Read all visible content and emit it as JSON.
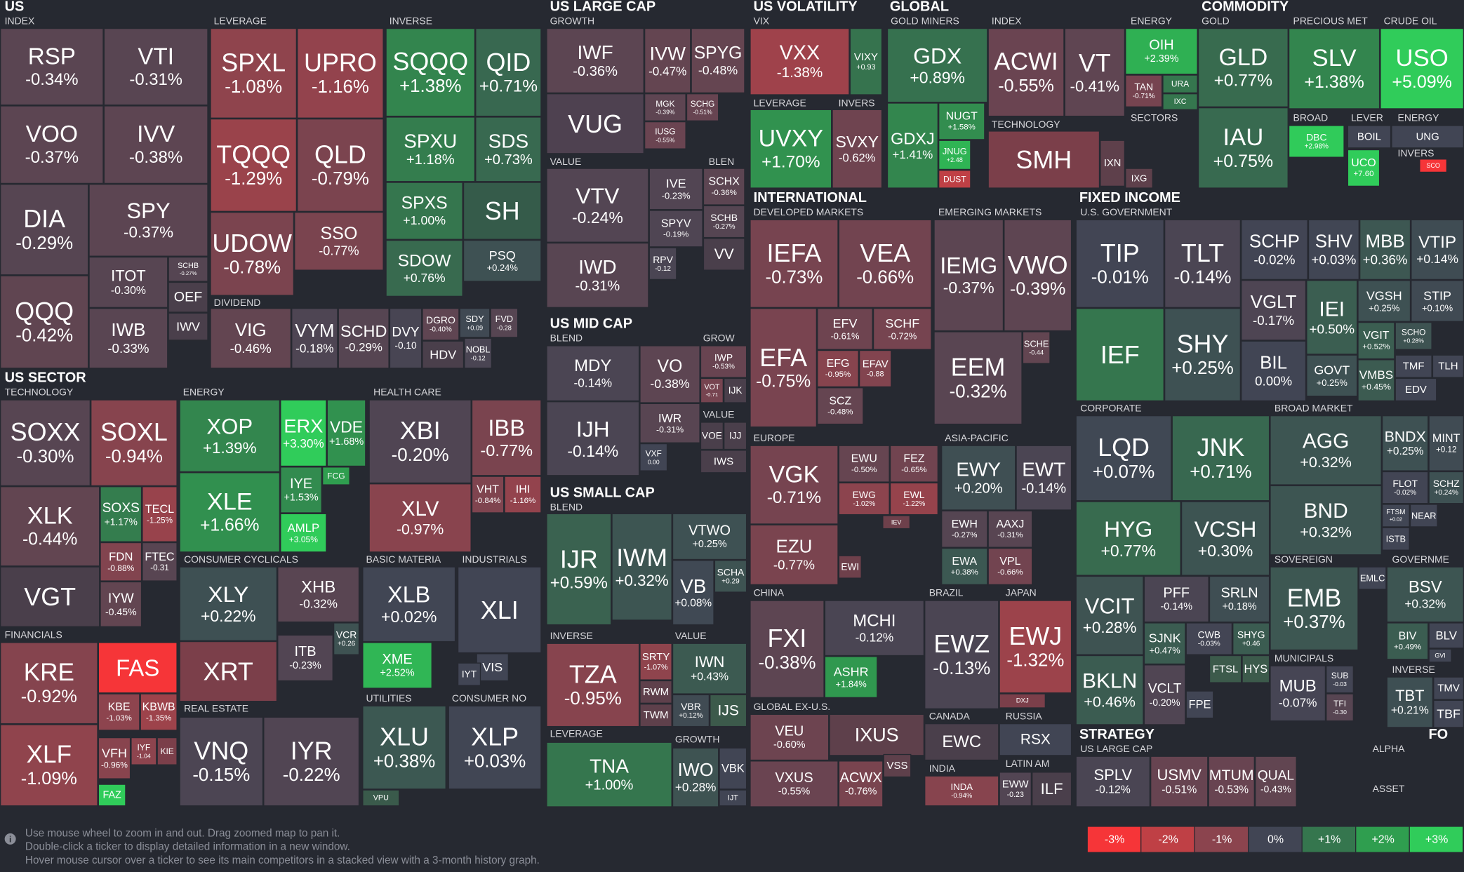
{
  "headers": [
    "US",
    "INDEX",
    "LEVERAGE",
    "INVERSE",
    "DIVIDEND",
    "US SECTOR",
    "TECHNOLOGY",
    "ENERGY",
    "HEALTH CARE",
    "CONSUMER CYCLICALS",
    "BASIC MATERIA",
    "INDUSTRIALS",
    "FINANCIALS",
    "REAL ESTATE",
    "UTILITIES",
    "CONSUMER NO",
    "US LARGE CAP",
    "GROWTH",
    "VALUE",
    "BLEN",
    "US MID CAP",
    "BLEND",
    "GROW",
    "VALUE",
    "US SMALL CAP",
    "BLEND",
    "INVERSE",
    "VALUE",
    "LEVERAGE",
    "GROWTH",
    "US VOLATILITY",
    "VIX",
    "LEVERAGE",
    "INVERS",
    "GLOBAL",
    "GOLD MINERS",
    "INDEX",
    "TECHNOLOGY",
    "ENERGY",
    "SECTORS",
    "COMMODITY",
    "GOLD",
    "PRECIOUS MET",
    "CRUDE OIL",
    "BROAD",
    "LEVER",
    "ENERGY",
    "INVERS",
    "INTERNATIONAL",
    "DEVELOPED MARKETS",
    "EMERGING MARKETS",
    "EUROPE",
    "ASIA-PACIFIC",
    "CHINA",
    "GLOBAL EX-U.S.",
    "BRAZIL",
    "JAPAN",
    "CANADA",
    "RUSSIA",
    "INDIA",
    "LATIN AM",
    "FIXED INCOME",
    "U.S. GOVERNMENT",
    "CORPORATE",
    "BROAD MARKET",
    "SOVEREIGN",
    "GOVERNME",
    "MUNICIPALS",
    "INVERSE",
    "STRATEGY",
    "US LARGE CAP",
    "ALPHA",
    "ASSET",
    "FO"
  ],
  "tiles": [
    {
      "ticker": "RSP",
      "change": "-0.34%"
    },
    {
      "ticker": "VTI",
      "change": "-0.31%"
    },
    {
      "ticker": "VOO",
      "change": "-0.37%"
    },
    {
      "ticker": "IVV",
      "change": "-0.38%"
    },
    {
      "ticker": "DIA",
      "change": "-0.29%"
    },
    {
      "ticker": "SPY",
      "change": "-0.37%"
    },
    {
      "ticker": "QQQ",
      "change": "-0.42%"
    },
    {
      "ticker": "ITOT",
      "change": "-0.30%"
    },
    {
      "ticker": "SCHB",
      "change": "-0.27%"
    },
    {
      "ticker": "OEF",
      "color": "#4a3f4b"
    },
    {
      "ticker": "IWB",
      "change": "-0.33%"
    },
    {
      "ticker": "IWV",
      "color": "#4a3f4b"
    },
    {
      "ticker": "SPXL",
      "change": "-1.08%"
    },
    {
      "ticker": "UPRO",
      "change": "-1.16%"
    },
    {
      "ticker": "TQQQ",
      "change": "-1.29%"
    },
    {
      "ticker": "QLD",
      "change": "-0.79%"
    },
    {
      "ticker": "UDOW",
      "change": "-0.78%"
    },
    {
      "ticker": "SSO",
      "change": "-0.77%"
    },
    {
      "ticker": "SQQQ",
      "change": "+1.38%"
    },
    {
      "ticker": "QID",
      "change": "+0.71%"
    },
    {
      "ticker": "SPXU",
      "change": "+1.18%"
    },
    {
      "ticker": "SDS",
      "change": "+0.73%"
    },
    {
      "ticker": "SPXS",
      "change": "+1.00%"
    },
    {
      "ticker": "SH",
      "color": "#355b4a"
    },
    {
      "ticker": "SDOW",
      "change": "+0.76%"
    },
    {
      "ticker": "PSQ",
      "change": "+0.24%"
    },
    {
      "ticker": "VIG",
      "change": "-0.46%"
    },
    {
      "ticker": "VYM",
      "change": "-0.18%"
    },
    {
      "ticker": "SCHD",
      "change": "-0.29%"
    },
    {
      "ticker": "DVY",
      "change": "-0.10"
    },
    {
      "ticker": "DGRO",
      "change": "-0.40%"
    },
    {
      "ticker": "SDY",
      "change": "+0.09"
    },
    {
      "ticker": "FVD",
      "change": "-0.28"
    },
    {
      "ticker": "HDV",
      "color": "#4a3f4b"
    },
    {
      "ticker": "NOBL",
      "change": "-0.12"
    },
    {
      "ticker": "SOXX",
      "change": "-0.30%"
    },
    {
      "ticker": "SOXL",
      "change": "-0.94%"
    },
    {
      "ticker": "XLK",
      "change": "-0.44%"
    },
    {
      "ticker": "SOXS",
      "change": "+1.17%"
    },
    {
      "ticker": "TECL",
      "change": "-1.25%"
    },
    {
      "ticker": "FDN",
      "change": "-0.88%"
    },
    {
      "ticker": "FTEC",
      "change": "-0.31"
    },
    {
      "ticker": "IYW",
      "change": "-0.45%"
    },
    {
      "ticker": "VGT",
      "color": "#4a3f4b"
    },
    {
      "ticker": "XOP",
      "change": "+1.39%"
    },
    {
      "ticker": "ERX",
      "change": "+3.30%"
    },
    {
      "ticker": "VDE",
      "change": "+1.68%"
    },
    {
      "ticker": "XLE",
      "change": "+1.66%"
    },
    {
      "ticker": "IYE",
      "change": "+1.53%"
    },
    {
      "ticker": "FCG",
      "color": "#2f9e4f"
    },
    {
      "ticker": "AMLP",
      "change": "+3.05%"
    },
    {
      "ticker": "XBI",
      "change": "-0.20%"
    },
    {
      "ticker": "IBB",
      "change": "-0.77%"
    },
    {
      "ticker": "XLV",
      "change": "-0.97%"
    },
    {
      "ticker": "VHT",
      "change": "-0.84%"
    },
    {
      "ticker": "IHI",
      "change": "-1.16%"
    },
    {
      "ticker": "XLY",
      "change": "+0.22%"
    },
    {
      "ticker": "XHB",
      "change": "-0.32%"
    },
    {
      "ticker": "XRT",
      "color": "#7b3f4a"
    },
    {
      "ticker": "ITB",
      "change": "-0.23%"
    },
    {
      "ticker": "VCR",
      "change": "+0.26"
    },
    {
      "ticker": "XLB",
      "change": "+0.02%"
    },
    {
      "ticker": "XME",
      "change": "+2.52%"
    },
    {
      "ticker": "XLI",
      "color": "#414554"
    },
    {
      "ticker": "VIS",
      "color": "#414554"
    },
    {
      "ticker": "IYT",
      "color": "#414554"
    },
    {
      "ticker": "XLU",
      "change": "+0.38%"
    },
    {
      "ticker": "VPU",
      "color": "#3a5a4b"
    },
    {
      "ticker": "XLP",
      "change": "+0.03%"
    },
    {
      "ticker": "KRE",
      "change": "-0.92%"
    },
    {
      "ticker": "FAS",
      "color": "#f63538"
    },
    {
      "ticker": "KBE",
      "change": "-1.03%"
    },
    {
      "ticker": "KBWB",
      "change": "-1.35%"
    },
    {
      "ticker": "XLF",
      "change": "-1.09%"
    },
    {
      "ticker": "VFH",
      "change": "-0.96%"
    },
    {
      "ticker": "IYF",
      "change": "-1.04"
    },
    {
      "ticker": "KIE",
      "color": "#7b3f4a"
    },
    {
      "ticker": "FAZ",
      "color": "#30cc5a"
    },
    {
      "ticker": "VNQ",
      "change": "-0.15%"
    },
    {
      "ticker": "IYR",
      "change": "-0.22%"
    },
    {
      "ticker": "IWF",
      "change": "-0.36%"
    },
    {
      "ticker": "IVW",
      "change": "-0.47%"
    },
    {
      "ticker": "SPYG",
      "change": "-0.48%"
    },
    {
      "ticker": "MGK",
      "change": "-0.39%"
    },
    {
      "ticker": "SCHG",
      "change": "-0.51%"
    },
    {
      "ticker": "VUG",
      "color": "#4e4150"
    },
    {
      "ticker": "IUSG",
      "change": "-0.55%"
    },
    {
      "ticker": "VTV",
      "change": "-0.24%"
    },
    {
      "ticker": "IVE",
      "change": "-0.23%"
    },
    {
      "ticker": "SPYV",
      "change": "-0.19%"
    },
    {
      "ticker": "IWD",
      "change": "-0.31%"
    },
    {
      "ticker": "RPV",
      "change": "-0.12"
    },
    {
      "ticker": "SCHX",
      "change": "-0.36%"
    },
    {
      "ticker": "SCHB",
      "change": "-0.27%"
    },
    {
      "ticker": "VV",
      "color": "#4a3f4b"
    },
    {
      "ticker": "MDY",
      "change": "-0.14%"
    },
    {
      "ticker": "VO",
      "change": "-0.38%"
    },
    {
      "ticker": "IWR",
      "change": "-0.31%"
    },
    {
      "ticker": "IJH",
      "change": "-0.14%"
    },
    {
      "ticker": "VXF",
      "change": "0.00"
    },
    {
      "ticker": "IWP",
      "change": "-0.53%"
    },
    {
      "ticker": "VOT",
      "change": "-0.71"
    },
    {
      "ticker": "IJK",
      "color": "#4a3f4b"
    },
    {
      "ticker": "VOE",
      "color": "#4a3f4b"
    },
    {
      "ticker": "IJJ",
      "color": "#4a3f4b"
    },
    {
      "ticker": "IWS",
      "color": "#4a3f4b"
    },
    {
      "ticker": "IJR",
      "change": "+0.59%"
    },
    {
      "ticker": "IWM",
      "change": "+0.32%"
    },
    {
      "ticker": "VTWO",
      "change": "+0.25%"
    },
    {
      "ticker": "VB",
      "change": "+0.08%"
    },
    {
      "ticker": "SCHA",
      "change": "+0.29"
    },
    {
      "ticker": "TZA",
      "change": "-0.95%"
    },
    {
      "ticker": "SRTY",
      "change": "-1.07%"
    },
    {
      "ticker": "RWM",
      "color": "#5e404b"
    },
    {
      "ticker": "TWM",
      "color": "#5e404b"
    },
    {
      "ticker": "IWN",
      "change": "+0.43%"
    },
    {
      "ticker": "VBR",
      "change": "+0.12%"
    },
    {
      "ticker": "IJS",
      "color": "#3c5a4b"
    },
    {
      "ticker": "TNA",
      "change": "+1.00%"
    },
    {
      "ticker": "IWO",
      "change": "+0.28%"
    },
    {
      "ticker": "VBK",
      "color": "#414554"
    },
    {
      "ticker": "IJT",
      "color": "#414554"
    },
    {
      "ticker": "VXX",
      "change": "-1.38%"
    },
    {
      "ticker": "VIXY",
      "change": "+0.93"
    },
    {
      "ticker": "UVXY",
      "change": "+1.70%"
    },
    {
      "ticker": "SVXY",
      "change": "-0.62%"
    },
    {
      "ticker": "GDX",
      "change": "+0.89%"
    },
    {
      "ticker": "GDXJ",
      "change": "+1.41%"
    },
    {
      "ticker": "NUGT",
      "change": "+1.58%"
    },
    {
      "ticker": "JNUG",
      "change": "+2.48"
    },
    {
      "ticker": "DUST",
      "color": "#bf4045"
    },
    {
      "ticker": "ACWI",
      "change": "-0.55%"
    },
    {
      "ticker": "VT",
      "change": "-0.41%"
    },
    {
      "ticker": "SMH",
      "color": "#7b3f4a"
    },
    {
      "ticker": "IXN",
      "color": "#5e404b"
    },
    {
      "ticker": "OIH",
      "change": "+2.39%"
    },
    {
      "ticker": "TAN",
      "change": "-0.71%"
    },
    {
      "ticker": "URA",
      "color": "#35764e"
    },
    {
      "ticker": "IXC",
      "color": "#35764e"
    },
    {
      "ticker": "IXG",
      "color": "#5e404b"
    },
    {
      "ticker": "GLD",
      "change": "+0.77%"
    },
    {
      "ticker": "IAU",
      "change": "+0.75%"
    },
    {
      "ticker": "SLV",
      "change": "+1.38%"
    },
    {
      "ticker": "USO",
      "change": "+5.09%"
    },
    {
      "ticker": "DBC",
      "change": "+2.98%"
    },
    {
      "ticker": "BOIL",
      "color": "#414554"
    },
    {
      "ticker": "UCO",
      "change": "+7.60"
    },
    {
      "ticker": "UNG",
      "color": "#414554"
    },
    {
      "ticker": "SCO",
      "color": "#f63538"
    },
    {
      "ticker": "IEFA",
      "change": "-0.73%"
    },
    {
      "ticker": "VEA",
      "change": "-0.66%"
    },
    {
      "ticker": "EFA",
      "change": "-0.75%"
    },
    {
      "ticker": "EFV",
      "change": "-0.61%"
    },
    {
      "ticker": "SCHF",
      "change": "-0.72%"
    },
    {
      "ticker": "EFG",
      "change": "-0.95%"
    },
    {
      "ticker": "EFAV",
      "change": "-0.88"
    },
    {
      "ticker": "SCZ",
      "change": "-0.48%"
    },
    {
      "ticker": "IEMG",
      "change": "-0.37%"
    },
    {
      "ticker": "VWO",
      "change": "-0.39%"
    },
    {
      "ticker": "EEM",
      "change": "-0.32%"
    },
    {
      "ticker": "SCHE",
      "change": "-0.44"
    },
    {
      "ticker": "VGK",
      "change": "-0.71%"
    },
    {
      "ticker": "EWU",
      "change": "-0.50%"
    },
    {
      "ticker": "FEZ",
      "change": "-0.65%"
    },
    {
      "ticker": "EWG",
      "change": "-1.02%"
    },
    {
      "ticker": "EWL",
      "change": "-1.22%"
    },
    {
      "ticker": "IEV",
      "color": "#6e404b"
    },
    {
      "ticker": "EZU",
      "change": "-0.77%"
    },
    {
      "ticker": "EWI",
      "color": "#6e404b"
    },
    {
      "ticker": "EWY",
      "change": "+0.20%"
    },
    {
      "ticker": "EWT",
      "change": "-0.14%"
    },
    {
      "ticker": "EWH",
      "change": "-0.27%"
    },
    {
      "ticker": "AAXJ",
      "change": "-0.31%"
    },
    {
      "ticker": "EWA",
      "change": "+0.38%"
    },
    {
      "ticker": "VPL",
      "change": "-0.66%"
    },
    {
      "ticker": "FXI",
      "change": "-0.38%"
    },
    {
      "ticker": "MCHI",
      "change": "-0.12%"
    },
    {
      "ticker": "ASHR",
      "change": "+1.84%"
    },
    {
      "ticker": "VEU",
      "change": "-0.60%"
    },
    {
      "ticker": "IXUS",
      "color": "#5e404b"
    },
    {
      "ticker": "VXUS",
      "change": "-0.55%"
    },
    {
      "ticker": "ACWX",
      "change": "-0.76%"
    },
    {
      "ticker": "VSS",
      "color": "#5e404b"
    },
    {
      "ticker": "EWZ",
      "change": "-0.13%"
    },
    {
      "ticker": "EWJ",
      "change": "-1.32%"
    },
    {
      "ticker": "DXJ",
      "color": "#7b3f4a"
    },
    {
      "ticker": "EWC",
      "color": "#4a3f4b"
    },
    {
      "ticker": "RSX",
      "color": "#414554"
    },
    {
      "ticker": "INDA",
      "change": "-0.94%"
    },
    {
      "ticker": "EWW",
      "change": "-0.23"
    },
    {
      "ticker": "ILF",
      "color": "#4a3f4b"
    },
    {
      "ticker": "TIP",
      "change": "-0.01%"
    },
    {
      "ticker": "TLT",
      "change": "-0.14%"
    },
    {
      "ticker": "SCHP",
      "change": "-0.02%"
    },
    {
      "ticker": "SHV",
      "change": "+0.03%"
    },
    {
      "ticker": "MBB",
      "change": "+0.36%"
    },
    {
      "ticker": "VTIP",
      "change": "+0.14%"
    },
    {
      "ticker": "VGLT",
      "change": "-0.17%"
    },
    {
      "ticker": "IEI",
      "change": "+0.50%"
    },
    {
      "ticker": "VGSH",
      "change": "+0.25%"
    },
    {
      "ticker": "STIP",
      "change": "+0.10%"
    },
    {
      "ticker": "VGIT",
      "change": "+0.52%"
    },
    {
      "ticker": "SCHO",
      "change": "+0.28%"
    },
    {
      "ticker": "IEF",
      "color": "#35764e"
    },
    {
      "ticker": "SHY",
      "change": "+0.25%"
    },
    {
      "ticker": "BIL",
      "change": "0.00%"
    },
    {
      "ticker": "GOVT",
      "change": "+0.25%"
    },
    {
      "ticker": "VMBS",
      "change": "+0.45%"
    },
    {
      "ticker": "TMF",
      "color": "#414554"
    },
    {
      "ticker": "TLH",
      "color": "#414554"
    },
    {
      "ticker": "EDV",
      "color": "#414554"
    },
    {
      "ticker": "LQD",
      "change": "+0.07%"
    },
    {
      "ticker": "JNK",
      "change": "+0.71%"
    },
    {
      "ticker": "HYG",
      "change": "+0.77%"
    },
    {
      "ticker": "VCSH",
      "change": "+0.30%"
    },
    {
      "ticker": "VCIT",
      "change": "+0.28%"
    },
    {
      "ticker": "PFF",
      "change": "-0.14%"
    },
    {
      "ticker": "SRLN",
      "change": "+0.18%"
    },
    {
      "ticker": "SJNK",
      "change": "+0.47%"
    },
    {
      "ticker": "CWB",
      "change": "-0.03%"
    },
    {
      "ticker": "SHYG",
      "change": "+0.46"
    },
    {
      "ticker": "FTSL",
      "color": "#3c5a4b"
    },
    {
      "ticker": "HYS",
      "color": "#3c5a4b"
    },
    {
      "ticker": "BKLN",
      "change": "+0.46%"
    },
    {
      "ticker": "VCLT",
      "change": "-0.20%"
    },
    {
      "ticker": "FPE",
      "color": "#414554"
    },
    {
      "ticker": "AGG",
      "change": "+0.32%"
    },
    {
      "ticker": "BNDX",
      "change": "+0.25%"
    },
    {
      "ticker": "MINT",
      "change": "+0.12"
    },
    {
      "ticker": "BND",
      "change": "+0.32%"
    },
    {
      "ticker": "FLOT",
      "change": "-0.02%"
    },
    {
      "ticker": "SCHZ",
      "change": "+0.24%"
    },
    {
      "ticker": "FTSM",
      "change": "+0.02"
    },
    {
      "ticker": "NEAR",
      "color": "#414554"
    },
    {
      "ticker": "ISTB",
      "color": "#414554"
    },
    {
      "ticker": "EMB",
      "change": "+0.37%"
    },
    {
      "ticker": "EMLC",
      "color": "#414554"
    },
    {
      "ticker": "BSV",
      "change": "+0.32%"
    },
    {
      "ticker": "BIV",
      "change": "+0.49%"
    },
    {
      "ticker": "BLV",
      "color": "#414554"
    },
    {
      "ticker": "GVI",
      "color": "#414554"
    },
    {
      "ticker": "MUB",
      "change": "-0.07%"
    },
    {
      "ticker": "SUB",
      "change": "-0.03"
    },
    {
      "ticker": "TFI",
      "change": "-0.30"
    },
    {
      "ticker": "TBT",
      "change": "+0.21%"
    },
    {
      "ticker": "TMV",
      "color": "#414554"
    },
    {
      "ticker": "TBF",
      "color": "#414554"
    },
    {
      "ticker": "SPLV",
      "change": "-0.12%"
    },
    {
      "ticker": "USMV",
      "change": "-0.51%"
    },
    {
      "ticker": "MTUM",
      "change": "-0.53%"
    },
    {
      "ticker": "QUAL",
      "change": "-0.43%"
    }
  ],
  "legend": [
    "-3%",
    "-2%",
    "-1%",
    "0%",
    "+1%",
    "+2%",
    "+3%"
  ],
  "legend_colors": [
    "#f63538",
    "#bf4045",
    "#8b444e",
    "#414554",
    "#35764e",
    "#2f9e4f",
    "#30cc5a"
  ],
  "help": [
    "Use mouse wheel to zoom in and out. Drag zoomed map to pan it.",
    "Double-click a ticker to display detailed information in a new window.",
    "Hover mouse cursor over a ticker to see its main competitors in a stacked view with a 3-month history graph."
  ]
}
